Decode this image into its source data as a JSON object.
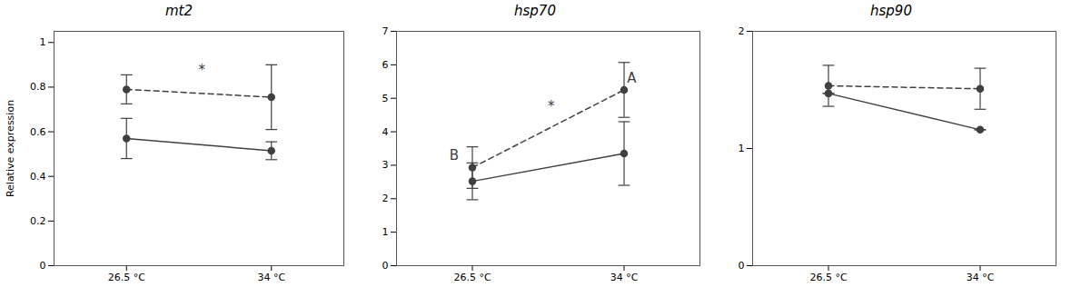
{
  "chart_data": [
    {
      "type": "line",
      "title": "mt2",
      "ylabel": "Relative expression",
      "x": [
        0,
        1
      ],
      "xlim": [
        -0.5,
        1.5
      ],
      "xticks": [
        {
          "value": 0,
          "label": "26.5 °C"
        },
        {
          "value": 1,
          "label": "34 °C"
        }
      ],
      "ylim": [
        0,
        1.05
      ],
      "yticks": [
        0,
        0.2,
        0.4,
        0.6,
        0.8,
        1
      ],
      "grid": false,
      "series": [
        {
          "color": "#404040",
          "line_style": "solid",
          "marker": "circle",
          "values": [
            0.57,
            0.515
          ],
          "err_low": [
            0.09,
            0.04
          ],
          "err_high": [
            0.09,
            0.04
          ]
        },
        {
          "color": "#404040",
          "line_style": "dashed",
          "marker": "circle",
          "values": [
            0.79,
            0.755
          ],
          "err_low": [
            0.065,
            0.145
          ],
          "err_high": [
            0.065,
            0.145
          ]
        }
      ],
      "annotations": [
        {
          "text": "*",
          "x": 0.52,
          "y": 0.875,
          "color": "#404040"
        }
      ]
    },
    {
      "type": "line",
      "title": "hsp70",
      "x": [
        0,
        1
      ],
      "xlim": [
        -0.5,
        1.5
      ],
      "xticks": [
        {
          "value": 0,
          "label": "26.5 °C"
        },
        {
          "value": 1,
          "label": "34 °C"
        }
      ],
      "ylim": [
        0,
        7.0
      ],
      "yticks": [
        0,
        1,
        2,
        3,
        4,
        5,
        6,
        7
      ],
      "grid": false,
      "series": [
        {
          "color": "#404040",
          "line_style": "solid",
          "marker": "circle",
          "values": [
            2.52,
            3.35
          ],
          "err_low": [
            0.55,
            0.95
          ],
          "err_high": [
            0.55,
            0.95
          ]
        },
        {
          "color": "#404040",
          "line_style": "dashed",
          "marker": "circle",
          "values": [
            2.93,
            5.25
          ],
          "err_low": [
            0.62,
            0.82
          ],
          "err_high": [
            0.62,
            0.82
          ]
        }
      ],
      "annotations": [
        {
          "text": "*",
          "x": 0.52,
          "y": 4.75,
          "color": "#404040"
        },
        {
          "text": "B",
          "x": -0.12,
          "y": 3.3,
          "color": "#404040"
        },
        {
          "text": "A",
          "x": 1.05,
          "y": 5.6,
          "color": "#404040"
        }
      ]
    },
    {
      "type": "line",
      "title": "hsp90",
      "x": [
        0,
        1
      ],
      "xlim": [
        -0.5,
        1.5
      ],
      "xticks": [
        {
          "value": 0,
          "label": "26.5 °C"
        },
        {
          "value": 1,
          "label": "34 °C"
        }
      ],
      "ylim": [
        0,
        2.0
      ],
      "yticks": [
        0,
        1,
        2
      ],
      "grid": false,
      "series": [
        {
          "color": "#404040",
          "line_style": "solid",
          "marker": "circle",
          "values": [
            1.47,
            1.16
          ],
          "err_low": [
            0.0,
            0.0
          ],
          "err_high": [
            0.0,
            0.0
          ]
        },
        {
          "color": "#404040",
          "line_style": "dashed",
          "marker": "circle",
          "values": [
            1.535,
            1.51
          ],
          "err_low": [
            0.175,
            0.175
          ],
          "err_high": [
            0.175,
            0.175
          ]
        }
      ]
    }
  ]
}
